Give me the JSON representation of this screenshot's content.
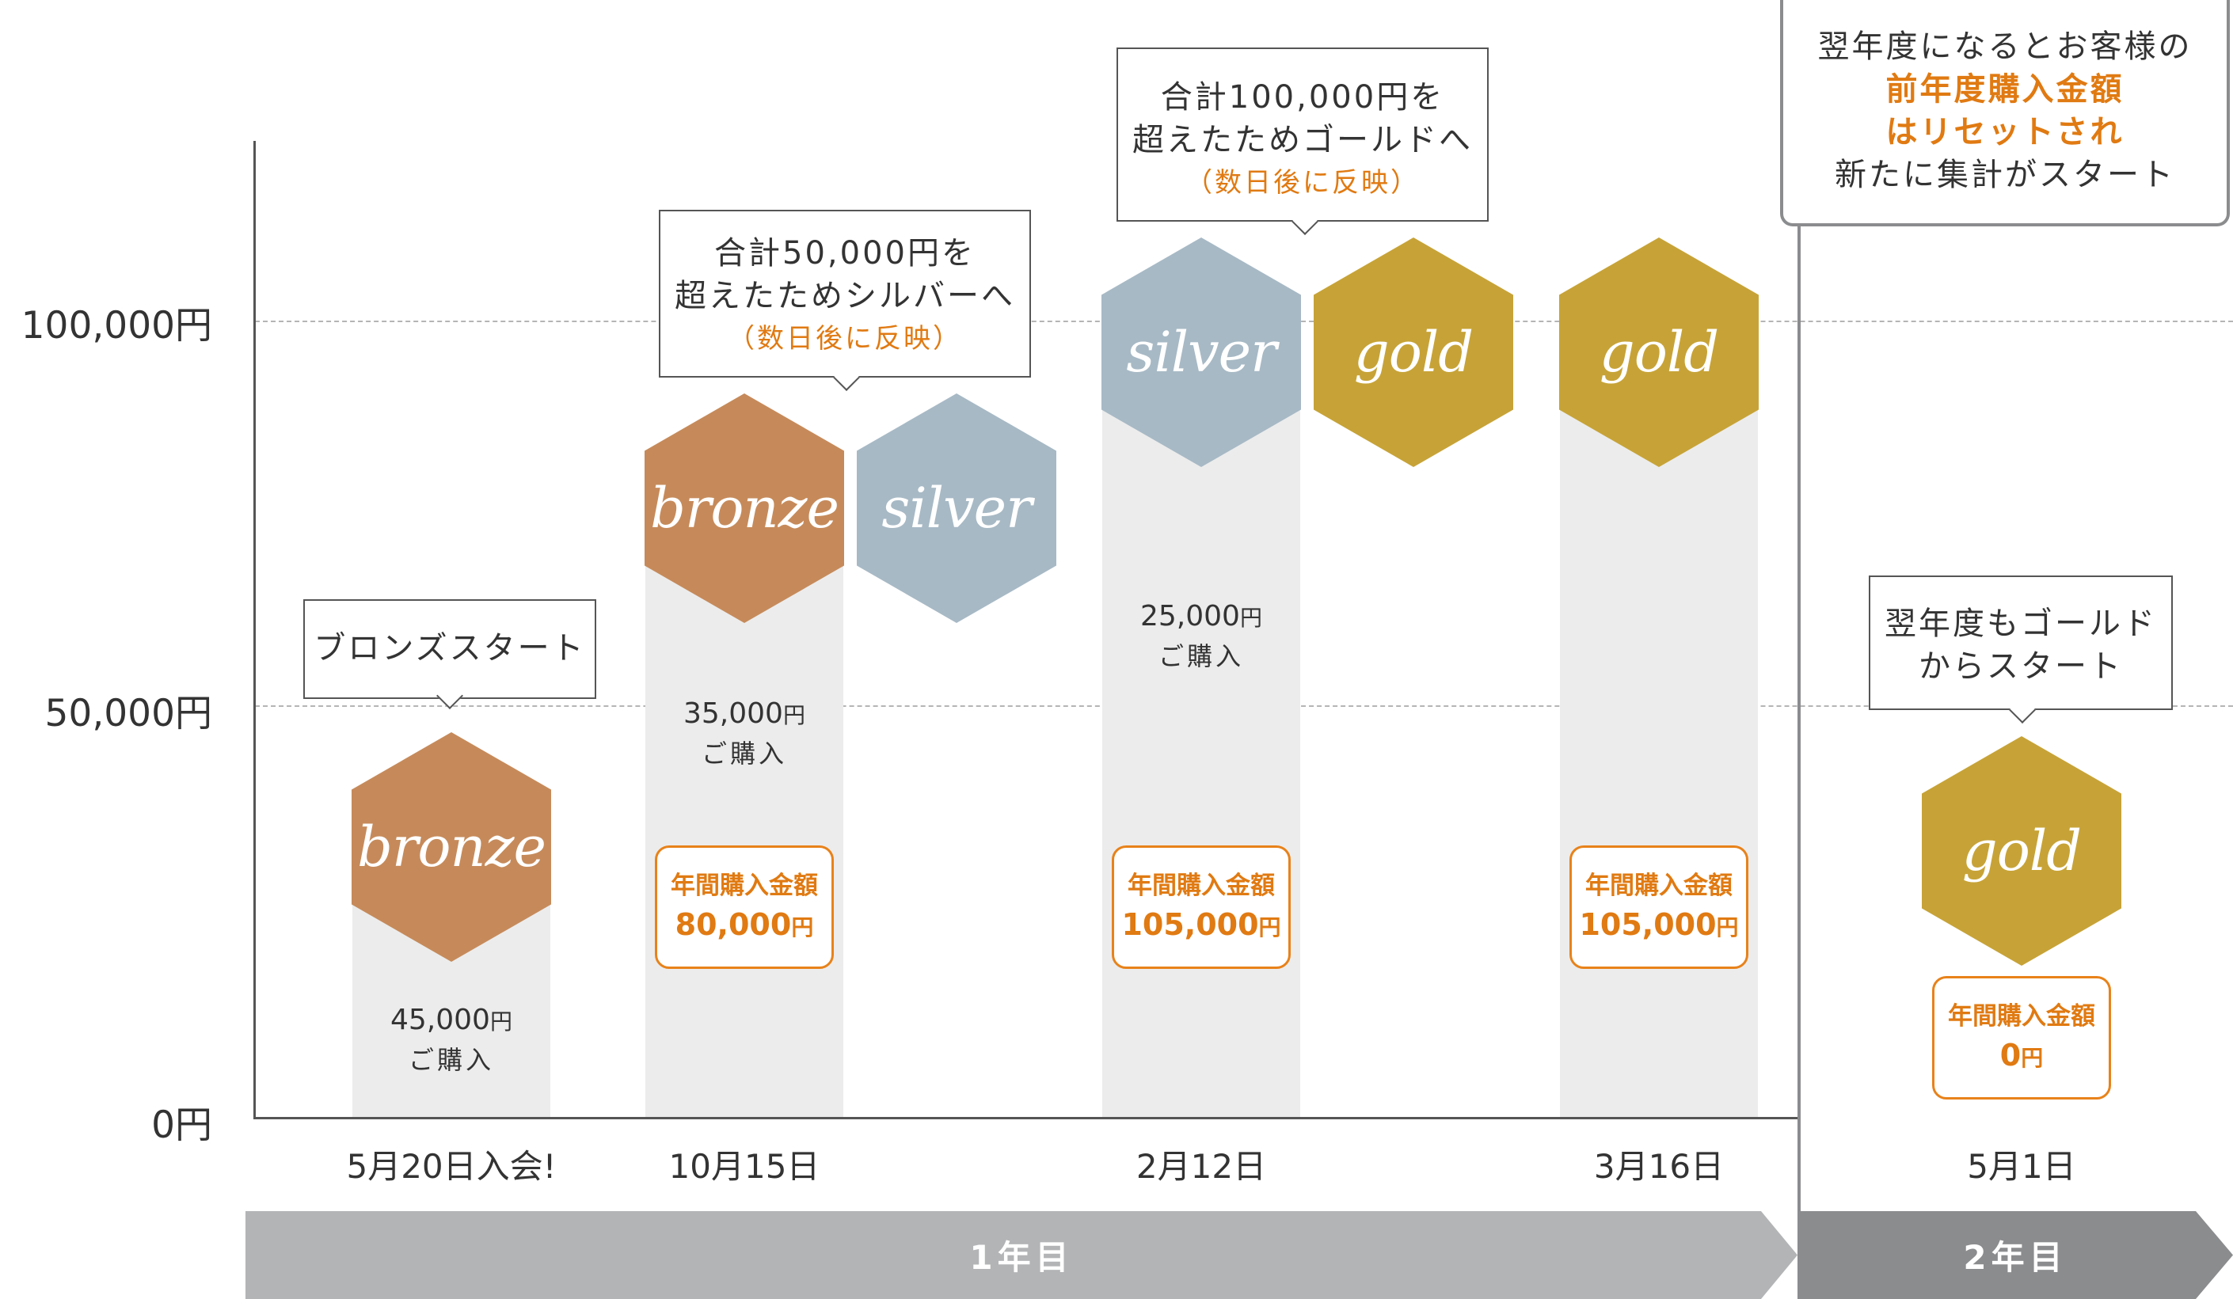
{
  "y_axis": {
    "ticks": [
      "100,000円",
      "50,000円",
      "0円"
    ]
  },
  "x_axis": {
    "dates": [
      "5月20日入会!",
      "10月15日",
      "2月12日",
      "3月16日",
      "5月1日"
    ]
  },
  "periods": {
    "year1": "1年目",
    "year2": "2年目"
  },
  "hexagons": {
    "bronze1": "bronze",
    "bronze2": "bronze",
    "silver2": "silver",
    "silver3": "silver",
    "gold3": "gold",
    "gold4": "gold",
    "gold5": "gold"
  },
  "purchases": {
    "p1": {
      "amount": "45,000",
      "yen": "円",
      "label": "ご購入"
    },
    "p2": {
      "amount": "35,000",
      "yen": "円",
      "label": "ご購入"
    },
    "p3": {
      "amount": "25,000",
      "yen": "円",
      "label": "ご購入"
    }
  },
  "annual_totals": {
    "label": "年間購入金額",
    "a2": {
      "amount": "80,000",
      "yen": "円"
    },
    "a3": {
      "amount": "105,000",
      "yen": "円"
    },
    "a4": {
      "amount": "105,000",
      "yen": "円"
    },
    "a5": {
      "amount": "0",
      "yen": "円"
    }
  },
  "callouts": {
    "start": "ブロンズスタート",
    "silver_line1": "合計50,000円を",
    "silver_line2": "超えたためシルバーへ",
    "silver_note": "（数日後に反映）",
    "gold_line1": "合計100,000円を",
    "gold_line2": "超えたためゴールドへ",
    "gold_note": "（数日後に反映）",
    "next_line1": "翌年度もゴールド",
    "next_line2": "からスタート",
    "reset_line1": "翌年度になるとお客様の",
    "reset_line2": "前年度購入金額",
    "reset_line3": "はリセットされ",
    "reset_line4": "新たに集計がスタート"
  },
  "colors": {
    "bronze": "#c68a5a",
    "silver": "#a7b9c5",
    "gold": "#c7a337",
    "accent_orange": "#e07a12",
    "year1_band": "#b3b4b6",
    "year2_band": "#8b8c8e"
  }
}
